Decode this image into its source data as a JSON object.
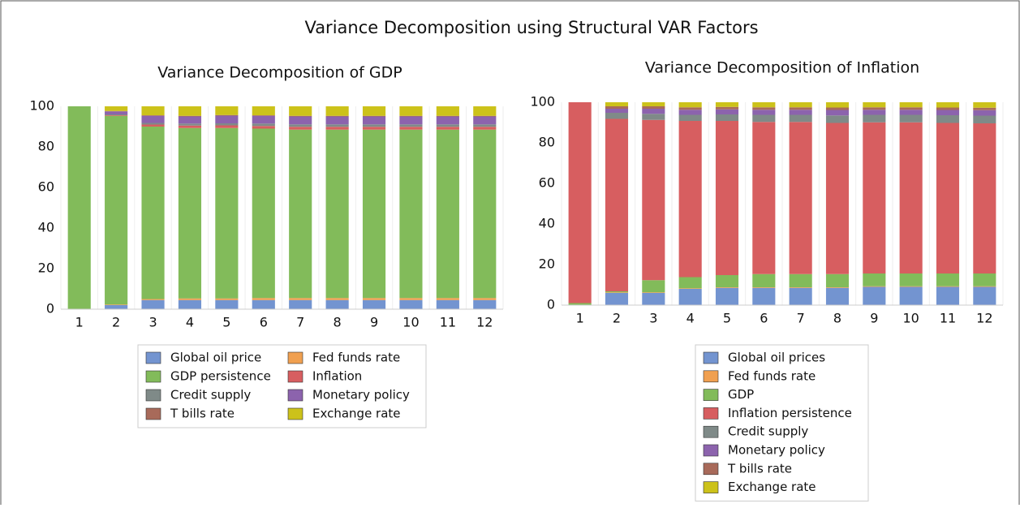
{
  "title": "Variance Decomposition using Structural VAR Factors",
  "chart_data": [
    {
      "type": "stacked_bar",
      "title": "Variance Decomposition of GDP",
      "categories": [
        "1",
        "2",
        "3",
        "4",
        "5",
        "6",
        "7",
        "8",
        "9",
        "10",
        "11",
        "12"
      ],
      "ylim": [
        0,
        100
      ],
      "yticks": [
        0,
        20,
        40,
        60,
        80,
        100
      ],
      "legend": "bottom",
      "series": [
        {
          "name": "Global oil price",
          "color": "#7394d0",
          "values": [
            0,
            2,
            4.5,
            4.5,
            4.5,
            4.5,
            4.5,
            4.5,
            4.5,
            4.5,
            4.5,
            4.5
          ]
        },
        {
          "name": "Fed funds rate",
          "color": "#f0a050",
          "values": [
            0,
            0.3,
            0.5,
            0.8,
            0.8,
            1,
            1,
            1,
            1,
            1,
            1,
            1
          ]
        },
        {
          "name": "GDP persistence",
          "color": "#82bb5a",
          "values": [
            100,
            93,
            85,
            84,
            84,
            83.5,
            83,
            83,
            83,
            83,
            83,
            83
          ]
        },
        {
          "name": "Inflation",
          "color": "#d75e60",
          "values": [
            0,
            0.3,
            1,
            1.2,
            1.3,
            1.3,
            1.4,
            1.4,
            1.4,
            1.4,
            1.4,
            1.4
          ]
        },
        {
          "name": "Credit supply",
          "color": "#7f8a88",
          "values": [
            0,
            0.4,
            0.8,
            1,
            1,
            1.2,
            1.2,
            1.2,
            1.2,
            1.2,
            1.2,
            1.2
          ]
        },
        {
          "name": "Monetary policy",
          "color": "#8c63ad",
          "values": [
            0,
            1.5,
            3.5,
            3.5,
            3.8,
            3.8,
            3.9,
            3.9,
            3.9,
            3.9,
            3.9,
            3.9
          ]
        },
        {
          "name": "T bills rate",
          "color": "#a86a5a",
          "values": [
            0,
            0.2,
            0.3,
            0.3,
            0.3,
            0.3,
            0.3,
            0.3,
            0.3,
            0.3,
            0.3,
            0.3
          ]
        },
        {
          "name": "Exchange rate",
          "color": "#ccc21a",
          "values": [
            0,
            2.3,
            4.4,
            4.7,
            4.3,
            4.4,
            4.7,
            4.7,
            4.7,
            4.7,
            4.7,
            4.7
          ]
        }
      ]
    },
    {
      "type": "stacked_bar",
      "title": "Variance Decomposition of Inflation",
      "categories": [
        "1",
        "2",
        "3",
        "4",
        "5",
        "6",
        "7",
        "8",
        "9",
        "10",
        "11",
        "12"
      ],
      "ylim": [
        0,
        100
      ],
      "yticks": [
        0,
        20,
        40,
        60,
        80,
        100
      ],
      "legend": "bottom",
      "series": [
        {
          "name": "Global oil prices",
          "color": "#7394d0",
          "values": [
            0,
            6,
            6,
            8,
            8.5,
            8.5,
            8.5,
            8.5,
            9,
            9,
            9,
            9
          ]
        },
        {
          "name": "Fed funds rate",
          "color": "#f0a050",
          "values": [
            0,
            0.3,
            0.3,
            0.3,
            0.3,
            0.3,
            0.3,
            0.3,
            0.3,
            0.3,
            0.3,
            0.3
          ]
        },
        {
          "name": "GDP",
          "color": "#82bb5a",
          "values": [
            1,
            0.5,
            6,
            5.5,
            6,
            6.5,
            6.5,
            6.5,
            6.3,
            6.3,
            6.3,
            6.3
          ]
        },
        {
          "name": "Inflation persistence",
          "color": "#d75e60",
          "values": [
            99,
            85,
            79,
            77,
            76,
            75,
            75,
            74.5,
            74.5,
            74.5,
            74.2,
            74
          ]
        },
        {
          "name": "Credit supply",
          "color": "#7f8a88",
          "values": [
            0,
            3,
            3,
            3,
            3.2,
            3.5,
            3.5,
            3.7,
            3.7,
            3.7,
            3.8,
            3.8
          ]
        },
        {
          "name": "Monetary policy",
          "color": "#8c63ad",
          "values": [
            0,
            2,
            2.5,
            2.5,
            2.5,
            2.5,
            2.5,
            2.7,
            2.5,
            2.5,
            2.6,
            2.7
          ]
        },
        {
          "name": "T bills rate",
          "color": "#a86a5a",
          "values": [
            0,
            1.2,
            1.2,
            1.2,
            1.2,
            1.2,
            1.2,
            1.2,
            1.2,
            1.2,
            1.2,
            1.2
          ]
        },
        {
          "name": "Exchange rate",
          "color": "#ccc21a",
          "values": [
            0,
            2,
            2,
            2.5,
            2.3,
            2.5,
            2.5,
            2.6,
            2.5,
            2.5,
            2.6,
            2.7
          ]
        }
      ]
    }
  ]
}
